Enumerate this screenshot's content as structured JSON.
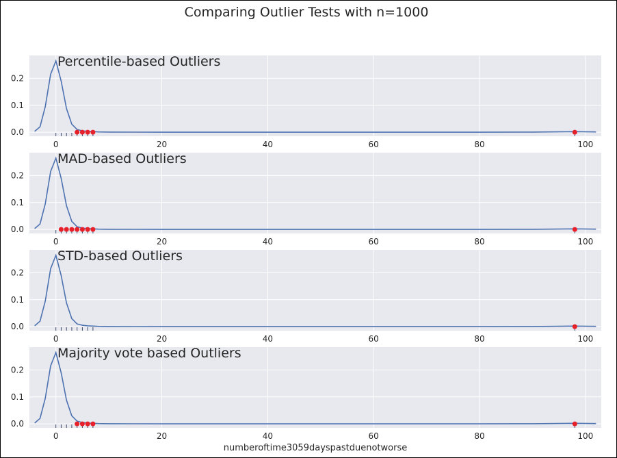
{
  "figure": {
    "suptitle": "Comparing Outlier Tests with n=1000",
    "xlabel": "numberoftime3059dayspastduenotworse",
    "background": "#ffffff",
    "panel_bg": "#e8e8ef",
    "grid_color": "#ffffff",
    "line_color": "#4c72b0",
    "outlier_color": "#e8202a",
    "rug_color": "#3b4a6b"
  },
  "chart_data": [
    {
      "type": "line",
      "title": "Percentile-based Outliers",
      "xlim": [
        -5,
        103
      ],
      "ylim": [
        -0.015,
        0.285
      ],
      "xticks": [
        0,
        20,
        40,
        60,
        80,
        100
      ],
      "yticks": [
        0.0,
        0.1,
        0.2
      ],
      "ytick_labels": [
        "0.0",
        "0.1",
        "0.2"
      ],
      "grid": true,
      "kde": {
        "x": [
          -4,
          -3,
          -2,
          -1,
          0,
          1,
          2,
          3,
          4,
          5,
          6,
          7,
          8,
          10,
          15,
          20,
          30,
          40,
          50,
          60,
          70,
          80,
          90,
          98,
          102
        ],
        "y": [
          0.003,
          0.02,
          0.095,
          0.215,
          0.265,
          0.19,
          0.088,
          0.03,
          0.01,
          0.005,
          0.003,
          0.002,
          0.001,
          0.0005,
          0.0002,
          0.0001,
          0.0001,
          0.0001,
          0.0001,
          0.0001,
          0.0001,
          0.0001,
          0.0005,
          0.002,
          0.001
        ]
      },
      "rug_x": [
        0,
        1,
        2,
        3,
        4,
        5,
        6,
        7,
        98
      ],
      "outliers_x": [
        4,
        5,
        6,
        7,
        98
      ]
    },
    {
      "type": "line",
      "title": "MAD-based Outliers",
      "xlim": [
        -5,
        103
      ],
      "ylim": [
        -0.015,
        0.285
      ],
      "xticks": [
        0,
        20,
        40,
        60,
        80,
        100
      ],
      "yticks": [
        0.0,
        0.1,
        0.2
      ],
      "ytick_labels": [
        "0.0",
        "0.1",
        "0.2"
      ],
      "grid": true,
      "kde": {
        "x": [
          -4,
          -3,
          -2,
          -1,
          0,
          1,
          2,
          3,
          4,
          5,
          6,
          7,
          8,
          10,
          15,
          20,
          30,
          40,
          50,
          60,
          70,
          80,
          90,
          98,
          102
        ],
        "y": [
          0.003,
          0.02,
          0.095,
          0.215,
          0.265,
          0.19,
          0.088,
          0.03,
          0.01,
          0.005,
          0.003,
          0.002,
          0.001,
          0.0005,
          0.0002,
          0.0001,
          0.0001,
          0.0001,
          0.0001,
          0.0001,
          0.0001,
          0.0001,
          0.0005,
          0.002,
          0.001
        ]
      },
      "rug_x": [
        0,
        1,
        2,
        3,
        4,
        5,
        6,
        7,
        98
      ],
      "outliers_x": [
        1,
        2,
        3,
        4,
        5,
        6,
        7,
        98
      ]
    },
    {
      "type": "line",
      "title": "STD-based Outliers",
      "xlim": [
        -5,
        103
      ],
      "ylim": [
        -0.015,
        0.285
      ],
      "xticks": [
        0,
        20,
        40,
        60,
        80,
        100
      ],
      "yticks": [
        0.0,
        0.1,
        0.2
      ],
      "ytick_labels": [
        "0.0",
        "0.1",
        "0.2"
      ],
      "grid": true,
      "kde": {
        "x": [
          -4,
          -3,
          -2,
          -1,
          0,
          1,
          2,
          3,
          4,
          5,
          6,
          7,
          8,
          10,
          15,
          20,
          30,
          40,
          50,
          60,
          70,
          80,
          90,
          98,
          102
        ],
        "y": [
          0.003,
          0.02,
          0.095,
          0.215,
          0.265,
          0.19,
          0.088,
          0.03,
          0.01,
          0.005,
          0.003,
          0.002,
          0.001,
          0.0005,
          0.0002,
          0.0001,
          0.0001,
          0.0001,
          0.0001,
          0.0001,
          0.0001,
          0.0001,
          0.0005,
          0.002,
          0.001
        ]
      },
      "rug_x": [
        0,
        1,
        2,
        3,
        4,
        5,
        6,
        7,
        98
      ],
      "outliers_x": [
        98
      ]
    },
    {
      "type": "line",
      "title": "Majority vote based Outliers",
      "xlim": [
        -5,
        103
      ],
      "ylim": [
        -0.015,
        0.285
      ],
      "xticks": [
        0,
        20,
        40,
        60,
        80,
        100
      ],
      "yticks": [
        0.0,
        0.1,
        0.2
      ],
      "ytick_labels": [
        "0.0",
        "0.1",
        "0.2"
      ],
      "grid": true,
      "kde": {
        "x": [
          -4,
          -3,
          -2,
          -1,
          0,
          1,
          2,
          3,
          4,
          5,
          6,
          7,
          8,
          10,
          15,
          20,
          30,
          40,
          50,
          60,
          70,
          80,
          90,
          98,
          102
        ],
        "y": [
          0.003,
          0.02,
          0.095,
          0.215,
          0.265,
          0.19,
          0.088,
          0.03,
          0.01,
          0.005,
          0.003,
          0.002,
          0.001,
          0.0005,
          0.0002,
          0.0001,
          0.0001,
          0.0001,
          0.0001,
          0.0001,
          0.0001,
          0.0001,
          0.0005,
          0.002,
          0.001
        ]
      },
      "rug_x": [
        0,
        1,
        2,
        3,
        4,
        5,
        6,
        7,
        98
      ],
      "outliers_x": [
        4,
        5,
        6,
        7,
        98
      ]
    }
  ]
}
